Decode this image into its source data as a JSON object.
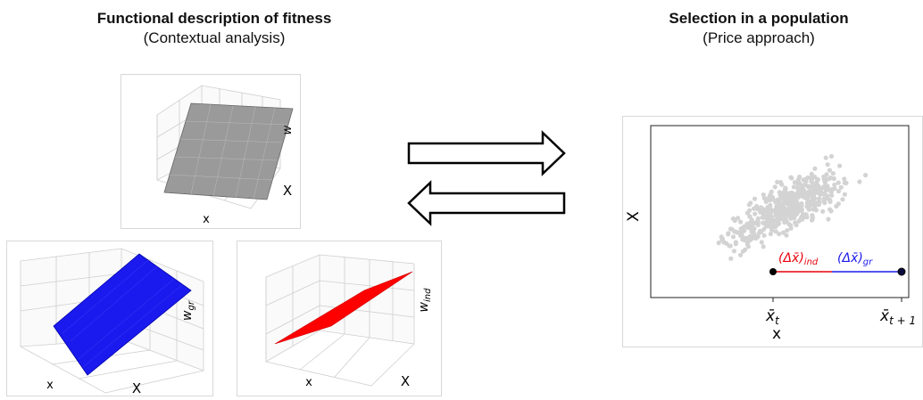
{
  "left_section": {
    "title": "Functional description of fitness",
    "subtitle": "(Contextual analysis)"
  },
  "right_section": {
    "title": "Selection in a population",
    "subtitle": "(Price approach)"
  },
  "plot_full": {
    "axis1": "x",
    "axis2": "X",
    "axis3": "w",
    "surface_color": "#9a9a9a"
  },
  "plot_group": {
    "axis1": "x",
    "axis2": "X",
    "axis3": "w",
    "axis3_sub": "gr",
    "surface_color": "#1a1aee"
  },
  "plot_individual": {
    "axis1": "x",
    "axis2": "X",
    "axis3": "w",
    "axis3_sub": "ind",
    "surface_color": "#ff0000"
  },
  "arrows": [
    {
      "direction": "right"
    },
    {
      "direction": "left"
    }
  ],
  "scatter": {
    "xlabel": "x",
    "ylabel": "X",
    "tick_t": "x̄",
    "tick_t_sub": "t",
    "tick_t1": "x̄",
    "tick_t1_sub": "t + 1",
    "label_ind": "(Δx̄)",
    "label_ind_sub": "ind",
    "label_gr": "(Δx̄)",
    "label_gr_sub": "gr",
    "ind_color": "#e8000b",
    "gr_color": "#1a1aee",
    "point_color": "#d3d3d3"
  }
}
